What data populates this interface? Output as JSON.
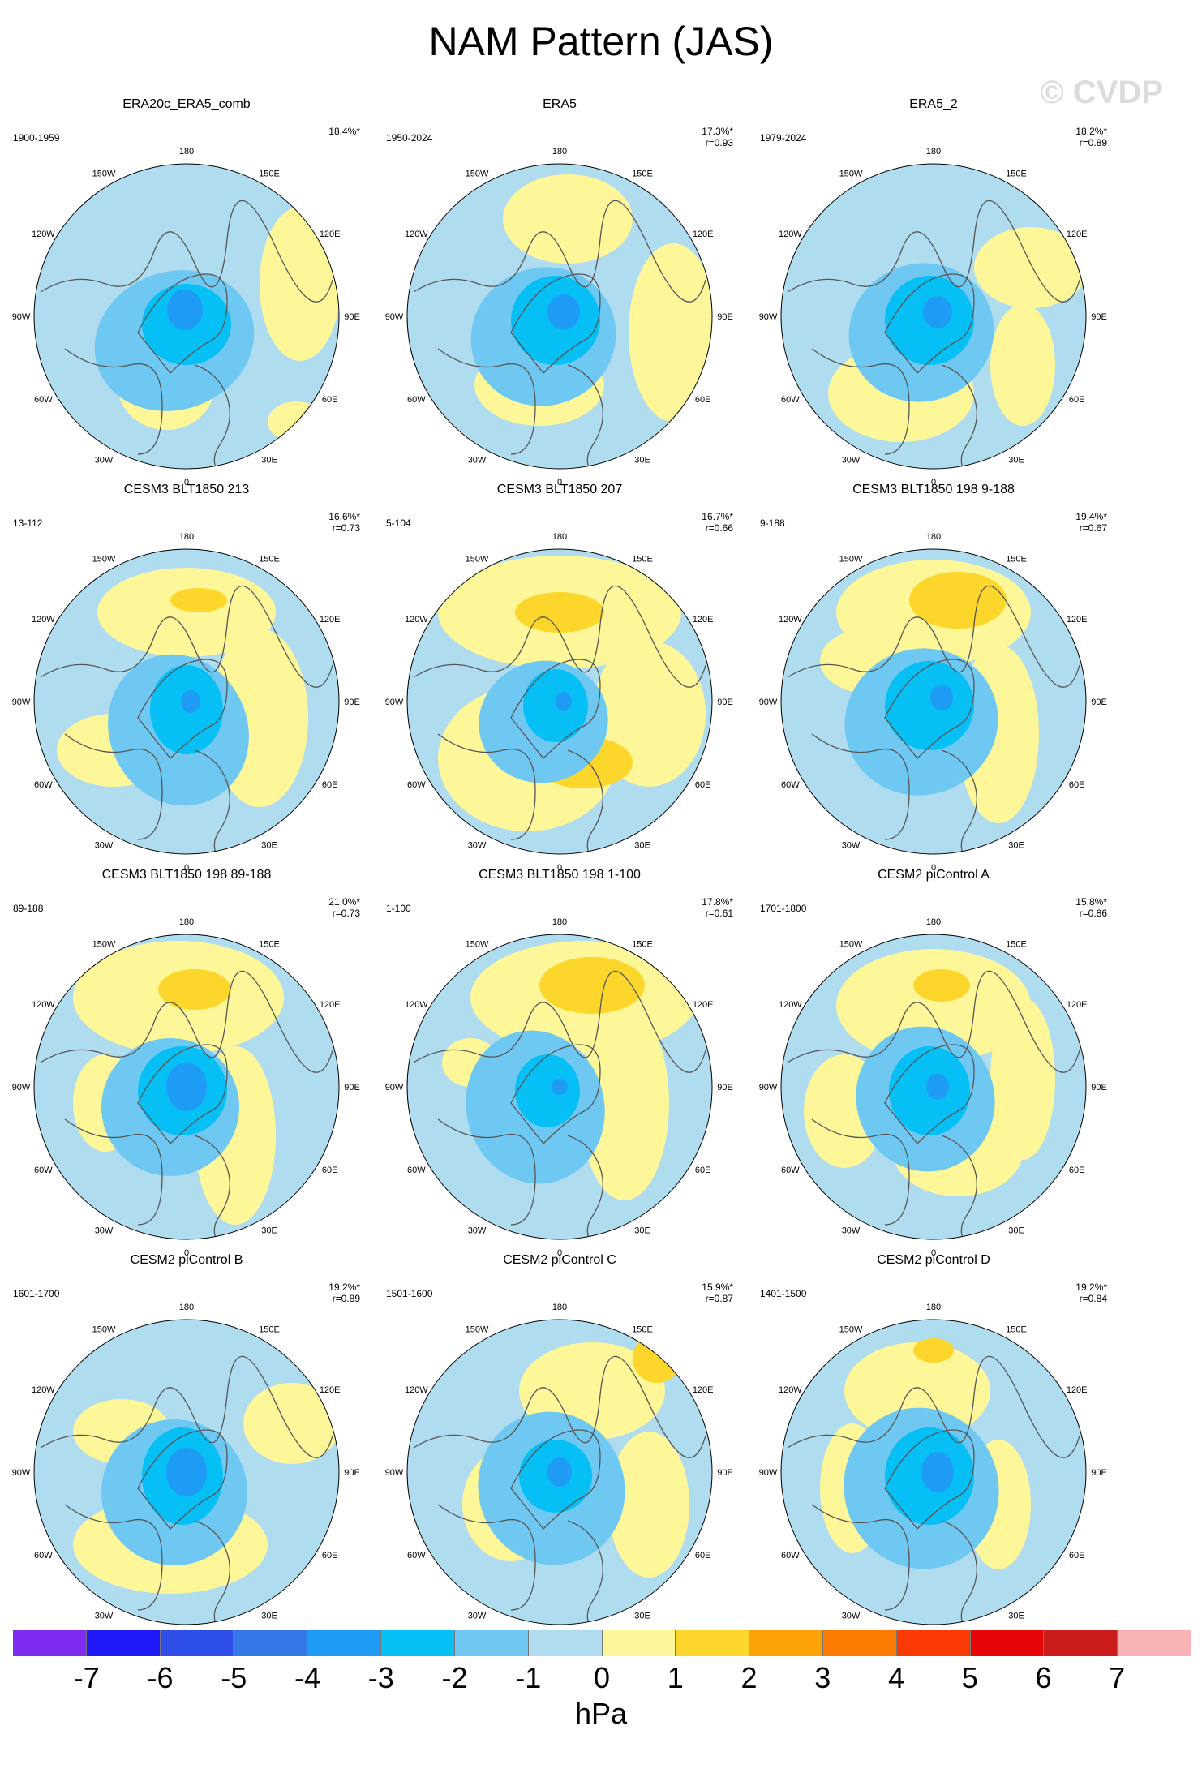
{
  "title": "NAM Pattern (JAS)",
  "watermark": "© CVDP",
  "lon_labels": [
    "180",
    "150E",
    "120E",
    "90E",
    "60E",
    "30E",
    "0",
    "30W",
    "60W",
    "90W",
    "120W",
    "150W"
  ],
  "colors": {
    "neg7": "#7f2cf0",
    "neg6": "#1f18f8",
    "neg5": "#2d4fe8",
    "neg4": "#3478e8",
    "neg3": "#1e9cf5",
    "neg2": "#06bff5",
    "neg1": "#6fc8f2",
    "zero_neg": "#b0dcf0",
    "zero_pos": "#fdf79a",
    "pos1": "#fcd62a",
    "pos2": "#fda204",
    "pos3": "#fc7b00",
    "pos4": "#fb3a05",
    "pos5": "#e80505",
    "pos6": "#cc1b1b",
    "pos7": "#f9b2b5",
    "coast": "#555555"
  },
  "colorbar": {
    "colors": [
      "#7f2cf0",
      "#1f18f8",
      "#2d4fe8",
      "#3478e8",
      "#1e9cf5",
      "#06bff5",
      "#6fc8f2",
      "#b0dcf0",
      "#fdf79a",
      "#fcd62a",
      "#fda204",
      "#fc7b00",
      "#fb3a05",
      "#e80505",
      "#cc1b1b",
      "#f9b2b5"
    ],
    "ticks": [
      "-7",
      "-6",
      "-5",
      "-4",
      "-3",
      "-2",
      "-1",
      "0",
      "1",
      "2",
      "3",
      "4",
      "5",
      "6",
      "7"
    ],
    "units": "hPa"
  },
  "panels": [
    {
      "title": "ERA20c_ERA5_comb",
      "period": "1900-1959",
      "pct": "18.4%*",
      "r": ""
    },
    {
      "title": "ERA5",
      "period": "1950-2024",
      "pct": "17.3%*",
      "r": "r=0.93"
    },
    {
      "title": "ERA5_2",
      "period": "1979-2024",
      "pct": "18.2%*",
      "r": "r=0.89"
    },
    {
      "title": "CESM3 BLT1850 213",
      "period": "13-112",
      "pct": "16.6%*",
      "r": "r=0.73"
    },
    {
      "title": "CESM3 BLT1850 207",
      "period": "5-104",
      "pct": "16.7%*",
      "r": "r=0.66"
    },
    {
      "title": "CESM3 BLT1850 198 9-188",
      "period": "9-188",
      "pct": "19.4%*",
      "r": "r=0.67"
    },
    {
      "title": "CESM3 BLT1850 198 89-188",
      "period": "89-188",
      "pct": "21.0%*",
      "r": "r=0.73"
    },
    {
      "title": "CESM3 BLT1850 198 1-100",
      "period": "1-100",
      "pct": "17.8%*",
      "r": "r=0.61"
    },
    {
      "title": "CESM2 piControl A",
      "period": "1701-1800",
      "pct": "15.8%*",
      "r": "r=0.86"
    },
    {
      "title": "CESM2 piControl B",
      "period": "1601-1700",
      "pct": "19.2%*",
      "r": "r=0.89"
    },
    {
      "title": "CESM2 piControl C",
      "period": "1501-1600",
      "pct": "15.9%*",
      "r": "r=0.87"
    },
    {
      "title": "CESM2 piControl D",
      "period": "1401-1500",
      "pct": "19.2%*",
      "r": "r=0.84"
    }
  ]
}
